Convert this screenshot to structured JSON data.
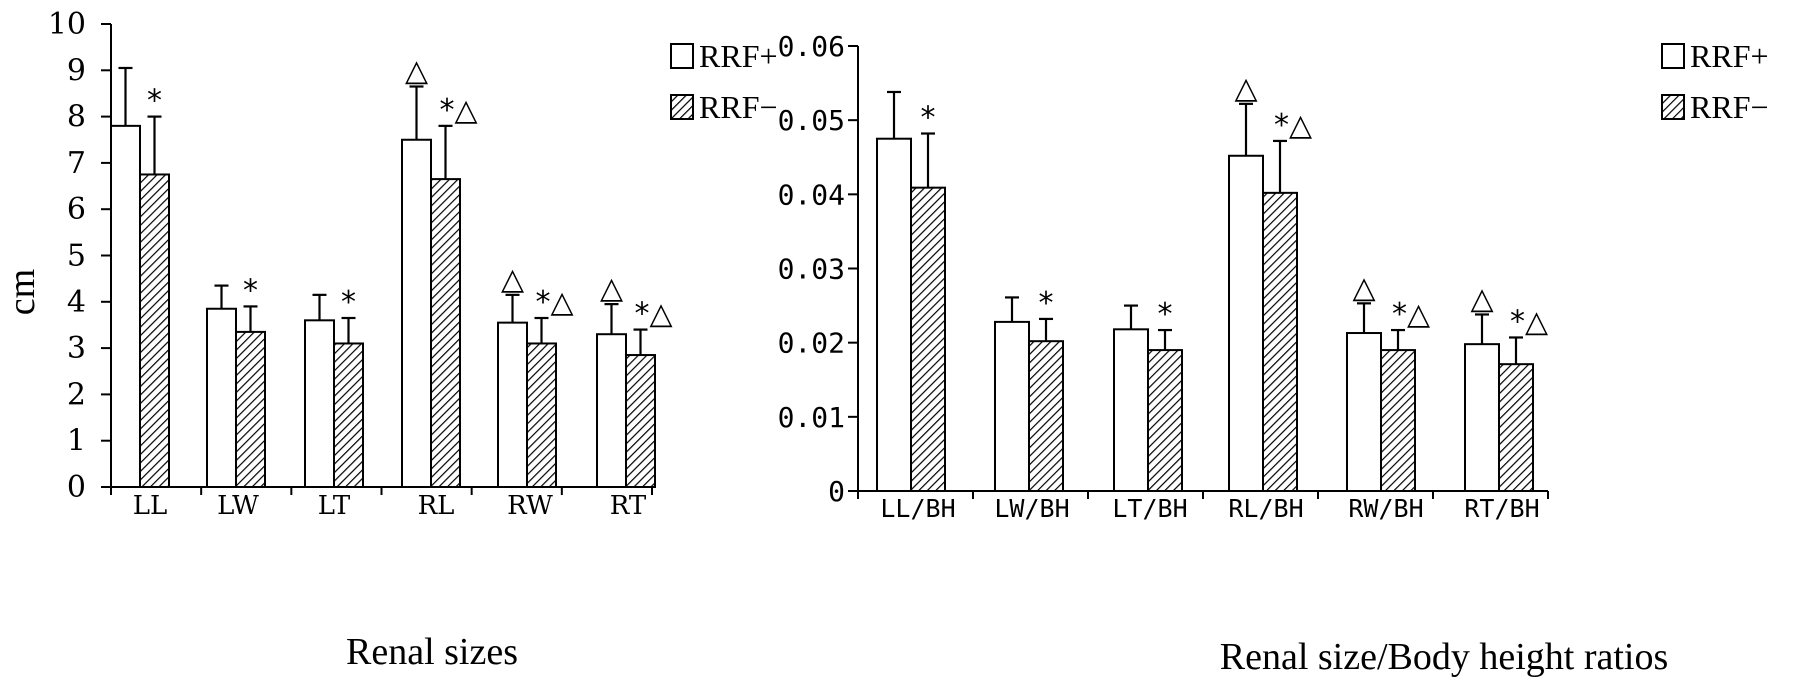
{
  "chart_data": [
    {
      "type": "bar",
      "categories": [
        "LL",
        "LW",
        "LT",
        "RL",
        "RW",
        "RT"
      ],
      "series": [
        {
          "name": "RRF+",
          "values": [
            7.8,
            3.85,
            3.6,
            7.5,
            3.55,
            3.3
          ],
          "errors": [
            1.25,
            0.5,
            0.55,
            1.15,
            0.6,
            0.65
          ],
          "annotations": [
            "",
            "",
            "",
            "△",
            "△",
            "△"
          ]
        },
        {
          "name": "RRF−",
          "values": [
            6.75,
            3.35,
            3.1,
            6.65,
            3.1,
            2.85
          ],
          "errors": [
            1.25,
            0.55,
            0.55,
            1.15,
            0.55,
            0.55
          ],
          "annotations": [
            "*",
            "*",
            "*",
            "*△",
            "*△",
            "*△"
          ]
        }
      ],
      "ylabel": "cm",
      "xlabel": "Renal sizes",
      "ylim": [
        0,
        10
      ],
      "yticks": [
        "0",
        "1",
        "2",
        "3",
        "4",
        "5",
        "6",
        "7",
        "8",
        "9",
        "10"
      ],
      "legend": "top-right"
    },
    {
      "type": "bar",
      "categories": [
        "LL/BH",
        "LW/BH",
        "LT/BH",
        "RL/BH",
        "RW/BH",
        "RT/BH"
      ],
      "series": [
        {
          "name": "RRF+",
          "values": [
            0.0475,
            0.0228,
            0.0218,
            0.0452,
            0.0213,
            0.0198
          ],
          "errors": [
            0.0063,
            0.0033,
            0.0032,
            0.007,
            0.004,
            0.004
          ],
          "annotations": [
            "",
            "",
            "",
            "△",
            "△",
            "△"
          ]
        },
        {
          "name": "RRF−",
          "values": [
            0.0409,
            0.0202,
            0.019,
            0.0402,
            0.019,
            0.0171
          ],
          "errors": [
            0.0073,
            0.003,
            0.0027,
            0.007,
            0.0027,
            0.0036
          ],
          "annotations": [
            "*",
            "*",
            "*",
            "*△",
            "*△",
            "*△"
          ]
        }
      ],
      "ylabel": "",
      "xlabel": "Renal size/Body height ratios",
      "ylim": [
        0,
        0.06
      ],
      "yticks": [
        "0",
        "0.01",
        "0.02",
        "0.03",
        "0.04",
        "0.05",
        "0.06"
      ],
      "legend": "top-right"
    }
  ]
}
